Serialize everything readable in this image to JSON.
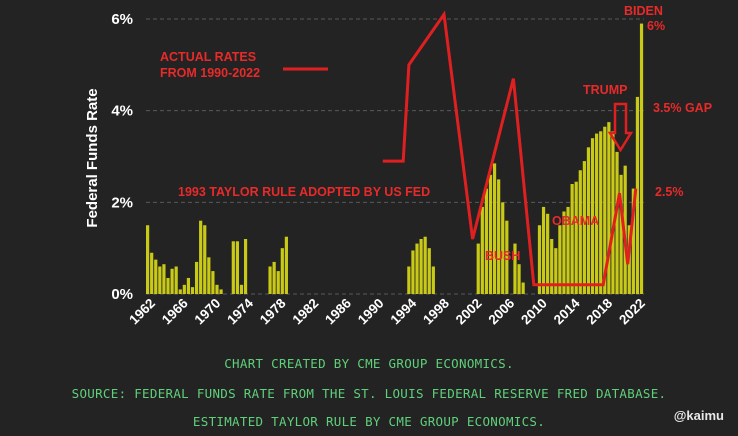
{
  "chart_data": {
    "type": "bar",
    "ylabel": "Federal Funds Rate",
    "y_ticks": [
      "0%",
      "2%",
      "4%",
      "6%"
    ],
    "ylim": [
      0,
      6
    ],
    "x_ticks": [
      "1962",
      "1966",
      "1970",
      "1974",
      "1978",
      "1982",
      "1986",
      "1990",
      "1994",
      "1998",
      "2002",
      "2006",
      "2010",
      "2014",
      "2018",
      "2022"
    ],
    "grid": "horizontal dashed",
    "bar_color": "#c9c917",
    "line_color": "#e02020",
    "bars": {
      "name": "Estimated Taylor Rule",
      "points": [
        [
          1962.0,
          1.5
        ],
        [
          1962.5,
          0.9
        ],
        [
          1963.0,
          0.75
        ],
        [
          1963.5,
          0.6
        ],
        [
          1964.0,
          0.65
        ],
        [
          1964.5,
          0.35
        ],
        [
          1965.0,
          0.55
        ],
        [
          1965.5,
          0.6
        ],
        [
          1966.0,
          0.1
        ],
        [
          1966.5,
          0.2
        ],
        [
          1967.0,
          0.35
        ],
        [
          1967.5,
          0.15
        ],
        [
          1968.0,
          0.7
        ],
        [
          1968.5,
          1.6
        ],
        [
          1969.0,
          1.5
        ],
        [
          1969.5,
          0.8
        ],
        [
          1970.0,
          0.5
        ],
        [
          1970.5,
          0.2
        ],
        [
          1971.0,
          0.1
        ],
        [
          1972.5,
          1.15
        ],
        [
          1973.0,
          1.15
        ],
        [
          1973.5,
          0.2
        ],
        [
          1974.0,
          1.2
        ],
        [
          1977.0,
          0.6
        ],
        [
          1977.5,
          0.7
        ],
        [
          1978.0,
          0.5
        ],
        [
          1978.5,
          1.0
        ],
        [
          1979.0,
          1.25
        ],
        [
          1994.0,
          0.6
        ],
        [
          1994.5,
          0.95
        ],
        [
          1995.0,
          1.1
        ],
        [
          1995.5,
          1.2
        ],
        [
          1996.0,
          1.25
        ],
        [
          1996.5,
          1.0
        ],
        [
          1997.0,
          0.6
        ],
        [
          2002.5,
          1.1
        ],
        [
          2003.0,
          1.9
        ],
        [
          2003.5,
          2.3
        ],
        [
          2004.0,
          2.6
        ],
        [
          2004.5,
          2.85
        ],
        [
          2005.0,
          2.5
        ],
        [
          2005.5,
          2.0
        ],
        [
          2006.0,
          1.6
        ],
        [
          2007.0,
          1.1
        ],
        [
          2007.5,
          0.65
        ],
        [
          2008.0,
          0.25
        ],
        [
          2010.0,
          1.5
        ],
        [
          2010.5,
          1.9
        ],
        [
          2011.0,
          1.75
        ],
        [
          2011.5,
          1.2
        ],
        [
          2012.0,
          1.0
        ],
        [
          2012.5,
          1.5
        ],
        [
          2013.0,
          1.8
        ],
        [
          2013.5,
          1.9
        ],
        [
          2014.0,
          2.4
        ],
        [
          2014.5,
          2.45
        ],
        [
          2015.0,
          2.7
        ],
        [
          2015.5,
          2.9
        ],
        [
          2016.0,
          3.2
        ],
        [
          2016.5,
          3.4
        ],
        [
          2017.0,
          3.5
        ],
        [
          2017.5,
          3.55
        ],
        [
          2018.0,
          3.65
        ],
        [
          2018.5,
          3.75
        ],
        [
          2019.0,
          3.55
        ],
        [
          2019.5,
          3.1
        ],
        [
          2020.0,
          2.6
        ],
        [
          2020.5,
          2.8
        ],
        [
          2021.0,
          1.5
        ],
        [
          2021.5,
          2.3
        ],
        [
          2022.0,
          4.3
        ],
        [
          2022.5,
          5.9
        ]
      ]
    },
    "line": {
      "name": "Actual rates",
      "points": [
        [
          1991.0,
          2.9
        ],
        [
          1993.5,
          2.9
        ],
        [
          1994.2,
          5.0
        ],
        [
          1998.5,
          6.1
        ],
        [
          2002.0,
          1.2
        ],
        [
          2007.0,
          4.7
        ],
        [
          2009.5,
          0.2
        ],
        [
          2018.0,
          0.2
        ],
        [
          2020.0,
          2.2
        ],
        [
          2021.0,
          0.65
        ],
        [
          2022.0,
          2.3
        ]
      ]
    },
    "annotations": {
      "actual_rates_line1": "ACTUAL RATES",
      "actual_rates_line2": "FROM 1990-2022",
      "taylor_rule": "1993 TAYLOR RULE ADOPTED BY US FED",
      "bush": "BUSH",
      "obama": "OBAMA",
      "trump": "TRUMP",
      "biden": "BIDEN",
      "biden_value": "6%",
      "gap": "3.5% GAP",
      "value_2_5": "2.5%"
    }
  },
  "footer": {
    "line1": "CHART CREATED BY CME GROUP ECONOMICS.",
    "line2": "SOURCE:  FEDERAL FUNDS RATE FROM THE ST. LOUIS FEDERAL RESERVE FRED DATABASE.",
    "line3": "ESTIMATED TAYLOR RULE BY CME GROUP ECONOMICS.",
    "watermark": "@kaimu"
  }
}
